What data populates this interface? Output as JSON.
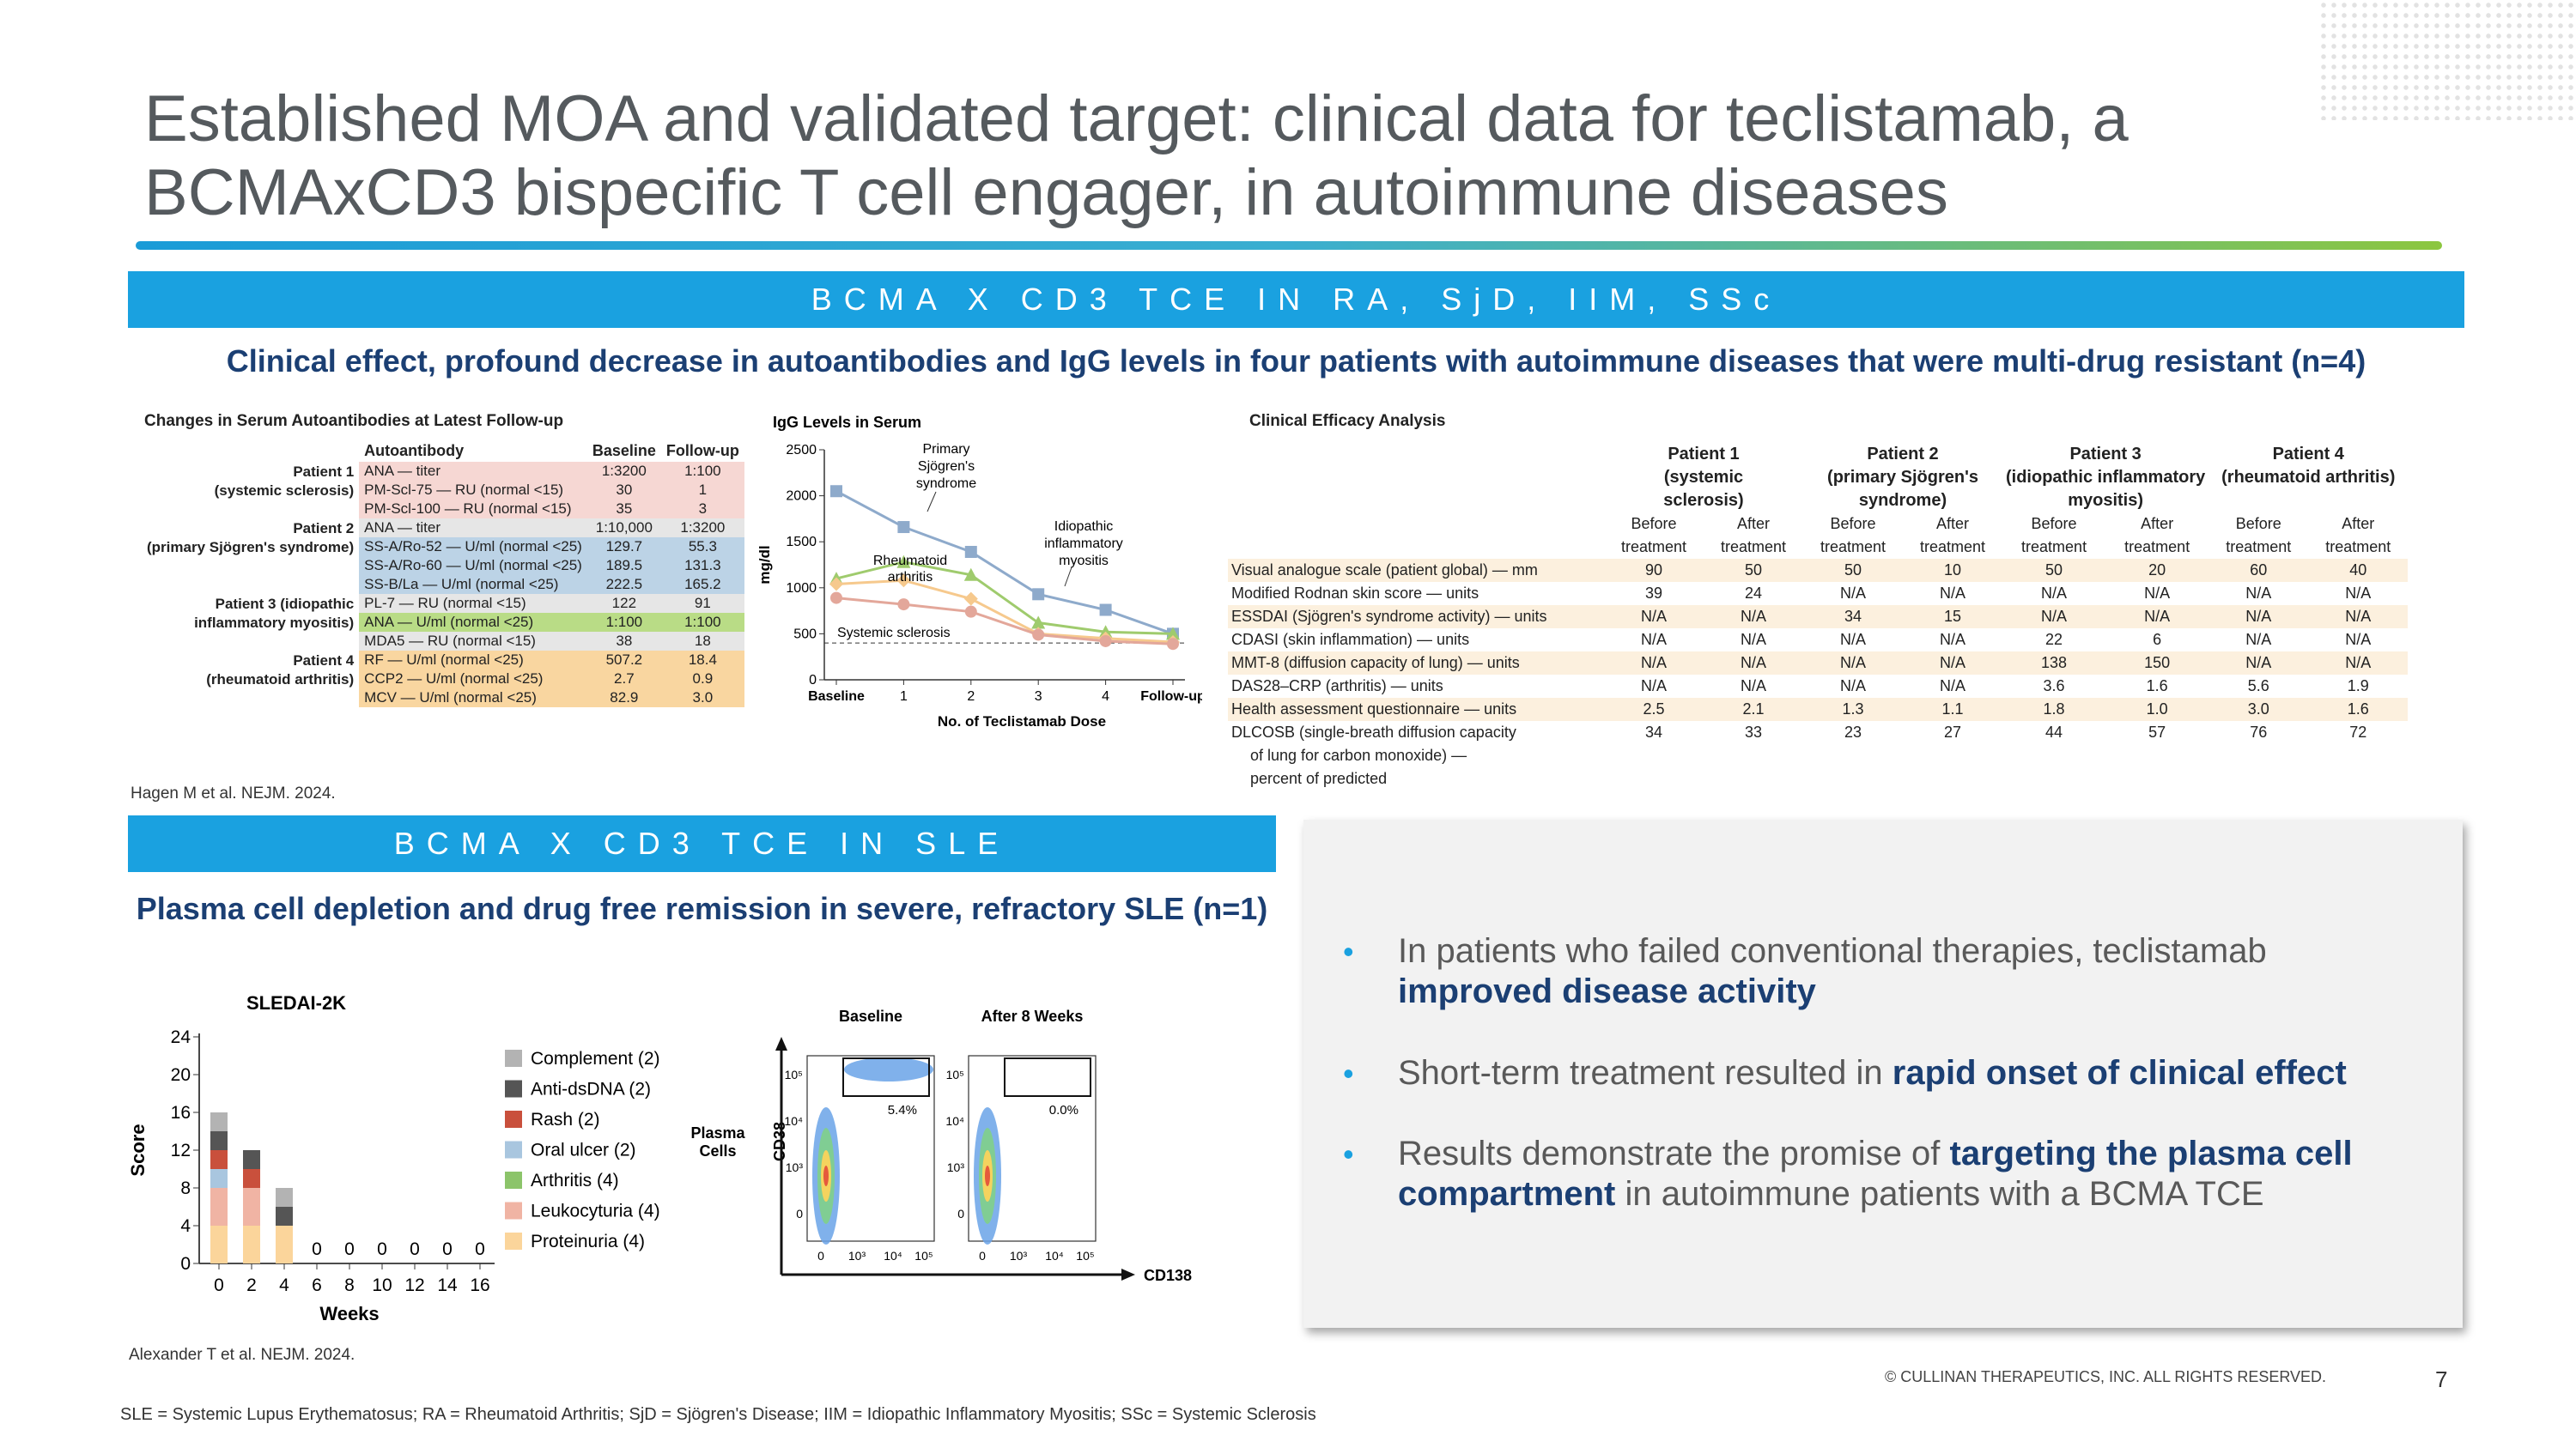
{
  "title": "Established MOA and validated target: clinical data for teclistamab, a BCMAxCD3 bispecific T cell engager, in autoimmune diseases",
  "band1": "BCMA X CD3 TCE IN RA, SjD, IIM, SSc",
  "sub1": "Clinical effect, profound decrease in autoantibodies and IgG levels in four patients with autoimmune diseases that were multi-drug resistant (n=4)",
  "autoantibody_table": {
    "title": "Changes in Serum Autoantibodies at Latest Follow-up",
    "headers": [
      "Autoantibody",
      "Baseline",
      "Follow-up"
    ],
    "rows": [
      {
        "patient": "Patient 1",
        "patient_sub": "(systemic sclerosis)",
        "label": "ANA — titer",
        "baseline": "1:3200",
        "follow": "1:100",
        "color": "#f6d7d3"
      },
      {
        "patient": "",
        "patient_sub": "",
        "label": "PM-Scl-75 — RU (normal <15)",
        "baseline": "30",
        "follow": "1",
        "color": "#f6d7d3"
      },
      {
        "patient": "",
        "patient_sub": "",
        "label": "PM-Scl-100 — RU (normal <15)",
        "baseline": "35",
        "follow": "3",
        "color": "#f6d7d3"
      },
      {
        "patient": "Patient 2",
        "patient_sub": "(primary Sjögren's syndrome)",
        "label": "ANA — titer",
        "baseline": "1:10,000",
        "follow": "1:3200",
        "color": "#e6e6e6"
      },
      {
        "patient": "",
        "patient_sub": "",
        "label": "SS-A/Ro-52 — U/ml (normal <25)",
        "baseline": "129.7",
        "follow": "55.3",
        "color": "#bcd3e6"
      },
      {
        "patient": "",
        "patient_sub": "",
        "label": "SS-A/Ro-60 — U/ml (normal <25)",
        "baseline": "189.5",
        "follow": "131.3",
        "color": "#bcd3e6"
      },
      {
        "patient": "",
        "patient_sub": "",
        "label": "SS-B/La — U/ml (normal <25)",
        "baseline": "222.5",
        "follow": "165.2",
        "color": "#bcd3e6"
      },
      {
        "patient": "Patient 3 (idiopathic",
        "patient_sub": "inflammatory myositis)",
        "label": "PL-7 — RU (normal <15)",
        "baseline": "122",
        "follow": "91",
        "color": "#e6e6e6"
      },
      {
        "patient": "",
        "patient_sub": "",
        "label": "ANA — U/ml (normal <25)",
        "baseline": "1:100",
        "follow": "1:100",
        "color": "#b9dc86"
      },
      {
        "patient": "",
        "patient_sub": "",
        "label": "MDA5 — RU (normal <15)",
        "baseline": "38",
        "follow": "18",
        "color": "#e6e6e6"
      },
      {
        "patient": "Patient 4",
        "patient_sub": "(rheumatoid arthritis)",
        "label": "RF — U/ml (normal <25)",
        "baseline": "507.2",
        "follow": "18.4",
        "color": "#f9d6a0"
      },
      {
        "patient": "",
        "patient_sub": "",
        "label": "CCP2 — U/ml (normal <25)",
        "baseline": "2.7",
        "follow": "0.9",
        "color": "#f9d6a0"
      },
      {
        "patient": "",
        "patient_sub": "",
        "label": "MCV — U/ml (normal <25)",
        "baseline": "82.9",
        "follow": "3.0",
        "color": "#f9d6a0"
      }
    ]
  },
  "cite1": "Hagen M et al. NEJM. 2024.",
  "chart_data": [
    {
      "type": "line",
      "title": "IgG Levels in Serum",
      "ylabel": "mg/dl",
      "xlabel": "No. of Teclistamab Dose",
      "x": [
        "Baseline",
        "1",
        "2",
        "3",
        "4",
        "Follow-up"
      ],
      "ylim": [
        0,
        2500
      ],
      "yticks": [
        0,
        500,
        1000,
        1500,
        2000,
        2500
      ],
      "series": [
        {
          "name": "Primary Sjögren's syndrome",
          "color": "#8eaacb",
          "values": [
            2050,
            1660,
            1390,
            930,
            760,
            500
          ]
        },
        {
          "name": "Idiopathic inflammatory myositis",
          "color": "#9fcb6d",
          "values": [
            1100,
            1280,
            1140,
            620,
            520,
            500
          ]
        },
        {
          "name": "Rheumatoid arthritis",
          "color": "#f6c98d",
          "values": [
            1040,
            1080,
            880,
            500,
            450,
            410
          ]
        },
        {
          "name": "Systemic sclerosis",
          "color": "#e3a79a",
          "values": [
            890,
            820,
            740,
            490,
            420,
            390
          ]
        }
      ],
      "reference_line": 400
    },
    {
      "type": "bar",
      "title": "SLEDAI-2K",
      "ylabel": "Score",
      "xlabel": "Weeks",
      "x": [
        "0",
        "2",
        "4",
        "6",
        "8",
        "10",
        "12",
        "14",
        "16"
      ],
      "ylim": [
        0,
        24
      ],
      "yticks": [
        0,
        4,
        8,
        12,
        16,
        20,
        24
      ],
      "stacked": true,
      "series": [
        {
          "name": "Proteinuria (4)",
          "color": "#fbd59b",
          "values": [
            4,
            4,
            4,
            0,
            0,
            0,
            0,
            0,
            0
          ]
        },
        {
          "name": "Leukocyturia (4)",
          "color": "#f0b4a4",
          "values": [
            4,
            4,
            0,
            0,
            0,
            0,
            0,
            0,
            0
          ]
        },
        {
          "name": "Arthritis (4)",
          "color": "#8cc46a",
          "values": [
            0,
            0,
            0,
            0,
            0,
            0,
            0,
            0,
            0
          ]
        },
        {
          "name": "Oral ulcer (2)",
          "color": "#a9c6df",
          "values": [
            2,
            0,
            0,
            0,
            0,
            0,
            0,
            0,
            0
          ]
        },
        {
          "name": "Rash (2)",
          "color": "#c9503c",
          "values": [
            2,
            2,
            0,
            0,
            0,
            0,
            0,
            0,
            0
          ]
        },
        {
          "name": "Anti-dsDNA (2)",
          "color": "#555555",
          "values": [
            2,
            2,
            2,
            0,
            0,
            0,
            0,
            0,
            0
          ]
        },
        {
          "name": "Complement (2)",
          "color": "#b3b3b3",
          "values": [
            2,
            0,
            2,
            0,
            0,
            0,
            0,
            0,
            0
          ]
        }
      ],
      "zero_labels": [
        "0",
        "0",
        "0",
        "0",
        "0",
        "0"
      ]
    }
  ],
  "igg_annotations": [
    "Primary",
    "Sjögren's",
    "syndrome",
    "Idiopathic",
    "inflammatory",
    "myositis",
    "Rheumatoid",
    "arthritis",
    "Systemic sclerosis"
  ],
  "efficacy": {
    "title": "Clinical Efficacy Analysis",
    "patients": [
      [
        "Patient 1",
        "(systemic",
        "sclerosis)"
      ],
      [
        "Patient 2",
        "(primary Sjögren's",
        "syndrome)"
      ],
      [
        "Patient 3",
        "(idiopathic inflammatory",
        "myositis)"
      ],
      [
        "Patient 4",
        "(rheumatoid arthritis)",
        ""
      ]
    ],
    "before": "Before",
    "after": "After",
    "treatment": "treatment",
    "rows": [
      {
        "label": "Visual analogue scale (patient global) — mm",
        "v": [
          "90",
          "50",
          "50",
          "10",
          "50",
          "20",
          "60",
          "40"
        ]
      },
      {
        "label": "Modified Rodnan skin score — units",
        "v": [
          "39",
          "24",
          "N/A",
          "N/A",
          "N/A",
          "N/A",
          "N/A",
          "N/A"
        ]
      },
      {
        "label": "ESSDAI (Sjögren's syndrome activity) — units",
        "v": [
          "N/A",
          "N/A",
          "34",
          "15",
          "N/A",
          "N/A",
          "N/A",
          "N/A"
        ]
      },
      {
        "label": "CDASI (skin inflammation) — units",
        "v": [
          "N/A",
          "N/A",
          "N/A",
          "N/A",
          "22",
          "6",
          "N/A",
          "N/A"
        ]
      },
      {
        "label": "MMT-8 (diffusion capacity of lung) — units",
        "v": [
          "N/A",
          "N/A",
          "N/A",
          "N/A",
          "138",
          "150",
          "N/A",
          "N/A"
        ]
      },
      {
        "label": "DAS28–CRP (arthritis) — units",
        "v": [
          "N/A",
          "N/A",
          "N/A",
          "N/A",
          "3.6",
          "1.6",
          "5.6",
          "1.9"
        ]
      },
      {
        "label": "Health assessment questionnaire — units",
        "v": [
          "2.5",
          "2.1",
          "1.3",
          "1.1",
          "1.8",
          "1.0",
          "3.0",
          "1.6"
        ]
      },
      {
        "label": "DLCOSB (single-breath diffusion capacity",
        "v": [
          "34",
          "33",
          "23",
          "27",
          "44",
          "57",
          "76",
          "72"
        ]
      }
    ],
    "last_label_cont": [
      "of lung for carbon monoxide) —",
      "percent of predicted"
    ]
  },
  "band2": "BCMA X CD3 TCE IN SLE",
  "sub2": "Plasma cell depletion and drug free remission in severe, refractory SLE (n=1)",
  "flow": {
    "plasma_cells": "Plasma Cells",
    "baseline": "Baseline",
    "after": "After 8 Weeks",
    "pct_baseline": "5.4%",
    "pct_after": "0.0%",
    "ylabel": "CD38",
    "xlabel": "CD138",
    "ticks_y": [
      "10⁵",
      "10⁴",
      "10³",
      "0"
    ],
    "ticks_x": [
      "0",
      "10³",
      "10⁴",
      "10⁵"
    ]
  },
  "cite2": "Alexander T et al. NEJM. 2024.",
  "bullets": [
    {
      "plain": "In patients who failed conventional therapies, teclistamab ",
      "bold": "improved disease activity",
      "tail": ""
    },
    {
      "plain": "Short-term treatment resulted in ",
      "bold": "rapid onset of clinical effect",
      "tail": ""
    },
    {
      "plain": "Results demonstrate the promise of ",
      "bold": "targeting the plasma cell compartment",
      "tail": " in autoimmune patients with a BCMA TCE"
    }
  ],
  "copyright": "© CULLINAN THERAPEUTICS, INC. ALL RIGHTS RESERVED.",
  "page_number": "7",
  "footer": "SLE = Systemic Lupus Erythematosus; RA = Rheumatoid Arthritis; SjD = Sjögren's Disease; IIM = Idiopathic Inflammatory Myositis; SSc = Systemic Sclerosis",
  "colors": {
    "band": "#1aa1e0",
    "navy": "#1b3f73",
    "title_grey": "#555a5e"
  }
}
